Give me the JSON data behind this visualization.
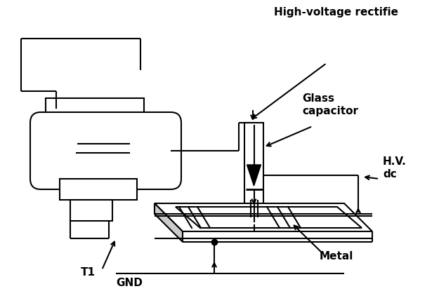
{
  "bg_color": "#ffffff",
  "line_color": "#000000",
  "lw": 1.5,
  "labels": {
    "T1": "T1",
    "GND": "GND",
    "Metal": "Metal",
    "Glass1": "Glass",
    "Glass2": "capacitor",
    "HV1": "H.V.",
    "HV2": "dc",
    "HVR": "High-voltage rectifie"
  }
}
